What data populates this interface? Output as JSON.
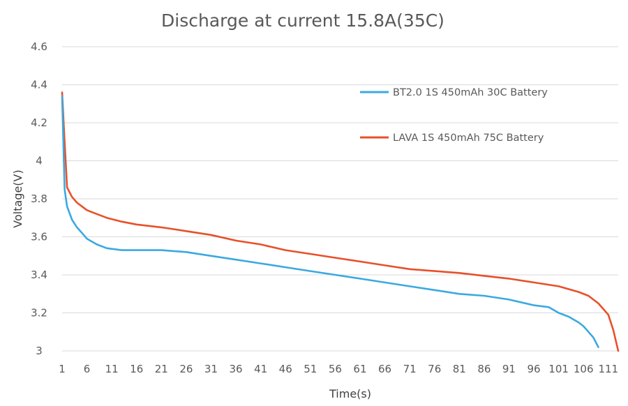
{
  "chart_data": {
    "type": "line",
    "title": "Discharge at current 15.8A(35C)",
    "xlabel": "Time(s)",
    "ylabel": "Voltage(V)",
    "xlim": [
      1,
      113
    ],
    "ylim": [
      3,
      4.6
    ],
    "grid": true,
    "legend_position": "upper-right",
    "x_ticks": [
      "1",
      "6",
      "11",
      "16",
      "21",
      "26",
      "31",
      "36",
      "41",
      "46",
      "51",
      "56",
      "61",
      "66",
      "71",
      "76",
      "81",
      "86",
      "91",
      "96",
      "101",
      "106",
      "111"
    ],
    "y_ticks": [
      "3",
      "3.2",
      "3.4",
      "3.6",
      "3.8",
      "4",
      "4.2",
      "4.4",
      "4.6"
    ],
    "series": [
      {
        "name": "BT2.0 1S 450mAh 30C Battery",
        "color": "#3ba9e0",
        "x": [
          1,
          1.5,
          2,
          3,
          4,
          5,
          6,
          8,
          10,
          13,
          16,
          21,
          26,
          31,
          36,
          41,
          46,
          51,
          56,
          61,
          66,
          71,
          76,
          81,
          86,
          91,
          96,
          99,
          101,
          103,
          105,
          106,
          107,
          108,
          109
        ],
        "values": [
          4.34,
          3.85,
          3.76,
          3.69,
          3.65,
          3.62,
          3.59,
          3.56,
          3.54,
          3.53,
          3.53,
          3.53,
          3.52,
          3.5,
          3.48,
          3.46,
          3.44,
          3.42,
          3.4,
          3.38,
          3.36,
          3.34,
          3.32,
          3.3,
          3.29,
          3.27,
          3.24,
          3.23,
          3.2,
          3.18,
          3.15,
          3.13,
          3.1,
          3.07,
          3.02
        ]
      },
      {
        "name": "LAVA 1S 450mAh 75C Battery",
        "color": "#e8502a",
        "x": [
          1,
          1.5,
          2,
          3,
          4,
          5,
          6,
          8,
          10,
          13,
          16,
          21,
          26,
          31,
          36,
          41,
          46,
          51,
          56,
          61,
          66,
          71,
          76,
          81,
          86,
          91,
          96,
          101,
          105,
          107,
          109,
          110,
          111,
          112,
          113
        ],
        "values": [
          4.36,
          4.1,
          3.86,
          3.81,
          3.78,
          3.76,
          3.74,
          3.72,
          3.7,
          3.68,
          3.665,
          3.65,
          3.63,
          3.61,
          3.58,
          3.56,
          3.53,
          3.51,
          3.49,
          3.47,
          3.45,
          3.43,
          3.42,
          3.41,
          3.395,
          3.38,
          3.36,
          3.34,
          3.31,
          3.29,
          3.25,
          3.22,
          3.19,
          3.11,
          3.0
        ]
      }
    ]
  }
}
